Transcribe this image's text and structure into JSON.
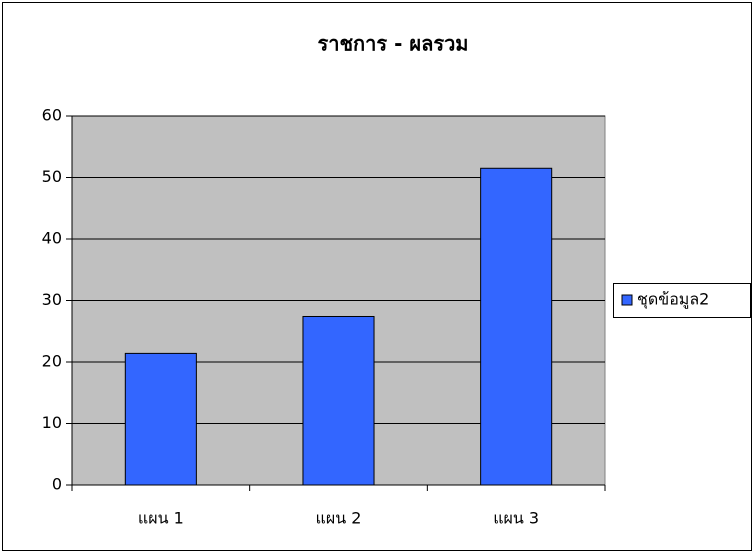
{
  "chart_data": {
    "type": "bar",
    "title": "ราชการ - ผลรวม",
    "categories": [
      "แผน 1",
      "แผน 2",
      "แผน 3"
    ],
    "series": [
      {
        "name": "ชุดข้อมูล2",
        "color": "#3366ff",
        "values": [
          21.4,
          27.4,
          51.5
        ]
      }
    ],
    "ylim": [
      0,
      60
    ],
    "yticks": [
      0,
      10,
      20,
      30,
      40,
      50,
      60
    ],
    "grid": true,
    "legend": "right"
  }
}
